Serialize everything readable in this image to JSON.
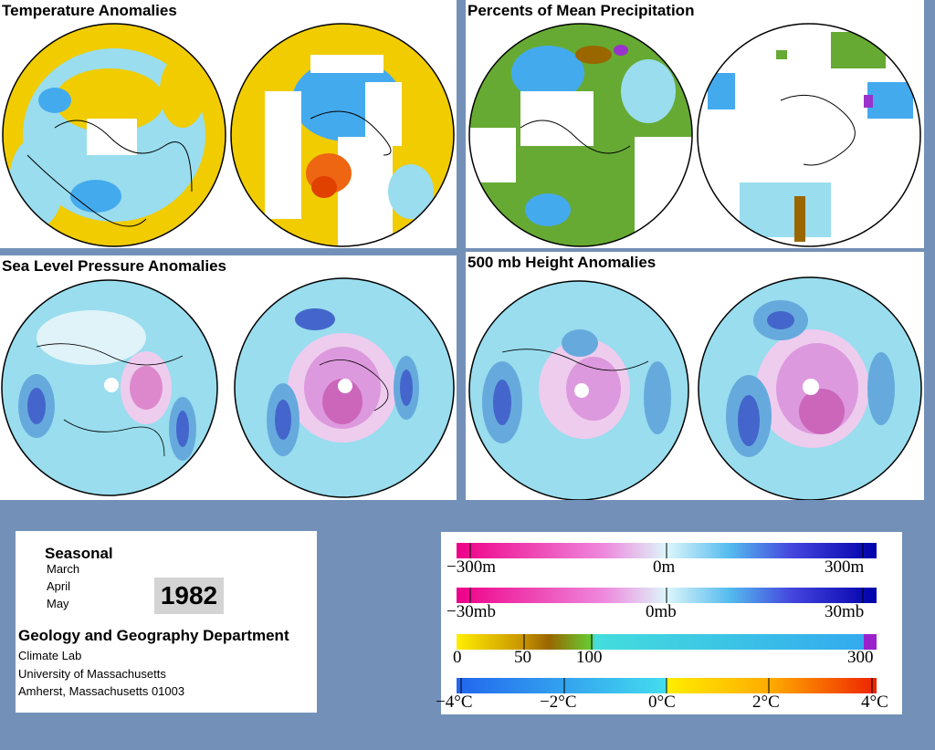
{
  "panels": {
    "temperature": "Temperature Anomalies",
    "precipitation": "Percents of Mean Precipitation",
    "slp": "Sea Level Pressure Anomalies",
    "height": "500 mb Height Anomalies"
  },
  "info": {
    "season": "Seasonal",
    "months": [
      "March",
      "April",
      "May"
    ],
    "year": "1982",
    "department": "Geology and Geography Department",
    "lab": "Climate Lab",
    "university": "University of Massachusetts",
    "address": "Amherst, Massachusetts 01003"
  },
  "legend": {
    "height": {
      "left": "−300m",
      "mid": "0m",
      "right": "300m"
    },
    "pressure": {
      "left": "−30mb",
      "mid": "0mb",
      "right": "30mb"
    },
    "precip": {
      "t0": "0",
      "t50": "50",
      "t100": "100",
      "t300": "300"
    },
    "temp": {
      "t1": "−4°C",
      "t2": "−2°C",
      "t3": "0°C",
      "t4": "2°C",
      "t5": "4°C"
    }
  },
  "colors": {
    "background": "#7390b8",
    "cyan": "#99ddee",
    "blue": "#44aaee",
    "yellow": "#f0cc00",
    "orange": "#ee6611",
    "green": "#66aa33",
    "magenta": "#dd3399",
    "darkblue": "#3344cc"
  }
}
